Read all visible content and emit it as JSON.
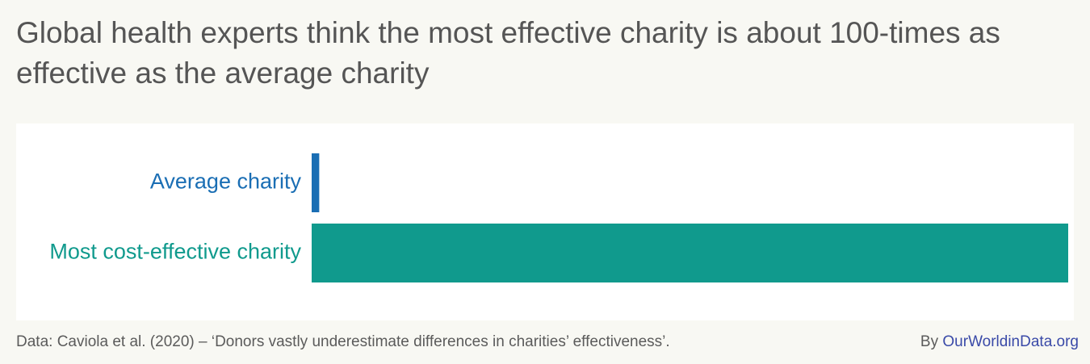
{
  "chart_data": {
    "type": "hbar",
    "title": "Global health experts think the most effective charity is about 100-times as effective as the average charity",
    "categories": [
      "Average charity",
      "Most cost-effective charity"
    ],
    "values": [
      1,
      100
    ],
    "colors": [
      "#1a6eb4",
      "#109a8d"
    ],
    "xlim": [
      0,
      100
    ],
    "source": "Data: Caviola et al. (2020) – ‘Donors vastly underestimate differences in charities’ effectiveness’.",
    "credit_prefix": "By",
    "credit": "OurWorldinData.org"
  }
}
